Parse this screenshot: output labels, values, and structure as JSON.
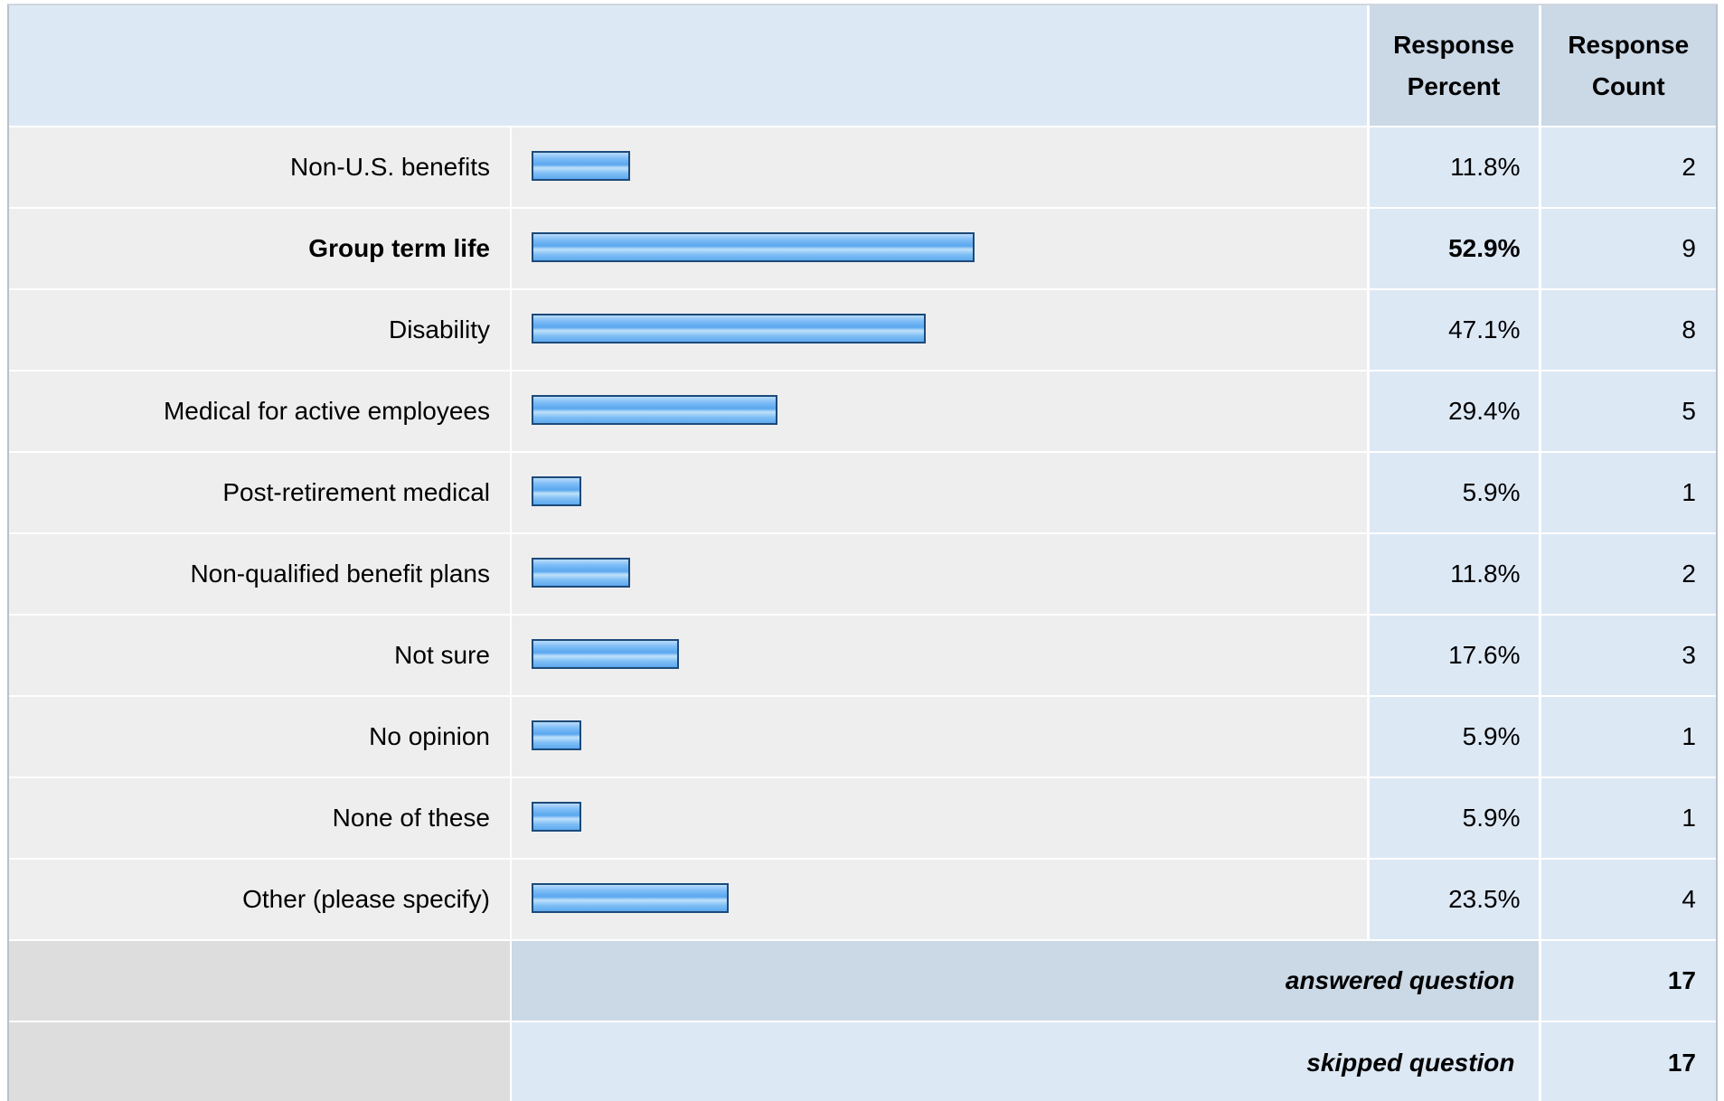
{
  "header": {
    "percent_label_line1": "Response",
    "percent_label_line2": "Percent",
    "count_label_line1": "Response",
    "count_label_line2": "Count"
  },
  "chart_data": {
    "type": "bar",
    "orientation": "horizontal",
    "categories": [
      "Non-U.S. benefits",
      "Group term life",
      "Disability",
      "Medical for active employees",
      "Post-retirement medical",
      "Non-qualified benefit plans",
      "Not sure",
      "No opinion",
      "None of these",
      "Other (please specify)"
    ],
    "values": [
      11.8,
      52.9,
      47.1,
      29.4,
      5.9,
      11.8,
      17.6,
      5.9,
      5.9,
      23.5
    ],
    "percent_labels": [
      "11.8%",
      "52.9%",
      "47.1%",
      "29.4%",
      "5.9%",
      "11.8%",
      "17.6%",
      "5.9%",
      "5.9%",
      "23.5%"
    ],
    "counts": [
      "2",
      "9",
      "8",
      "5",
      "1",
      "2",
      "3",
      "1",
      "1",
      "4"
    ],
    "highlighted_index": 1,
    "bar_color": "#6db3f2",
    "bar_border_color": "#1c4a7a",
    "xlim": [
      0,
      100
    ]
  },
  "summary": {
    "answered_label": "answered question",
    "answered_value": "17",
    "skipped_label": "skipped question",
    "skipped_value": "17"
  }
}
